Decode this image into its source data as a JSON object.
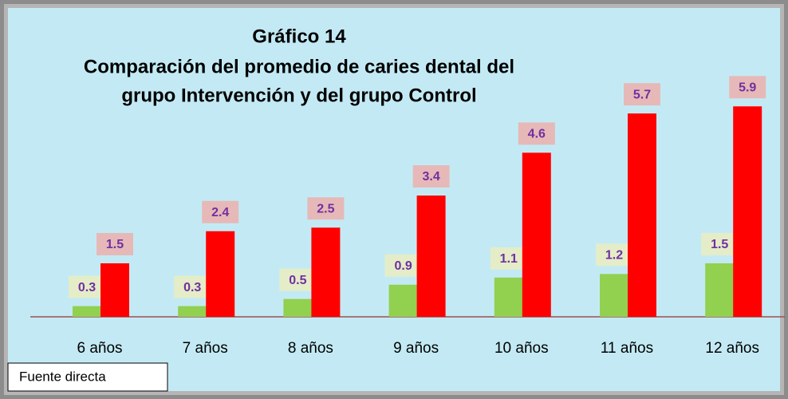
{
  "chart_data": {
    "type": "bar",
    "title": "Gráfico 14",
    "subtitle": [
      "Comparación del promedio de caries dental del",
      "grupo Intervención y del grupo Control"
    ],
    "categories": [
      "6 años",
      "7 años",
      "8 años",
      "9 años",
      "10 años",
      "11 años",
      "12 años"
    ],
    "series": [
      {
        "color": "#92d050",
        "label_color": "#e4edc8",
        "values": [
          0.3,
          0.3,
          0.5,
          0.9,
          1.1,
          1.2,
          1.5
        ]
      },
      {
        "color": "#ff0000",
        "label_color": "#e6b9b8",
        "values": [
          1.5,
          2.4,
          2.5,
          3.4,
          4.6,
          5.7,
          5.9
        ]
      }
    ],
    "source": "Fuente directa"
  }
}
